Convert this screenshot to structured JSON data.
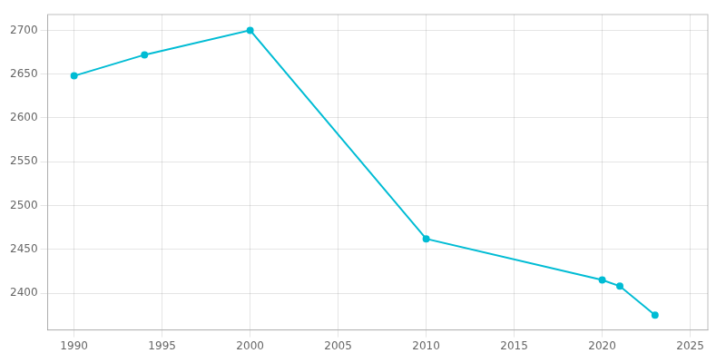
{
  "chart_data": {
    "type": "line",
    "x": [
      1990,
      1994,
      2000,
      2010,
      2020,
      2021,
      2023
    ],
    "values": [
      2648,
      2672,
      2700,
      2462,
      2415,
      2408,
      2375
    ],
    "color": "#00bcd4",
    "marker": "circle",
    "xlim": [
      1988.5,
      2026
    ],
    "ylim": [
      2358,
      2718
    ],
    "xticks": [
      1990,
      1995,
      2000,
      2005,
      2010,
      2015,
      2020,
      2025
    ],
    "yticks": [
      2400,
      2450,
      2500,
      2550,
      2600,
      2650,
      2700
    ],
    "grid": true
  }
}
